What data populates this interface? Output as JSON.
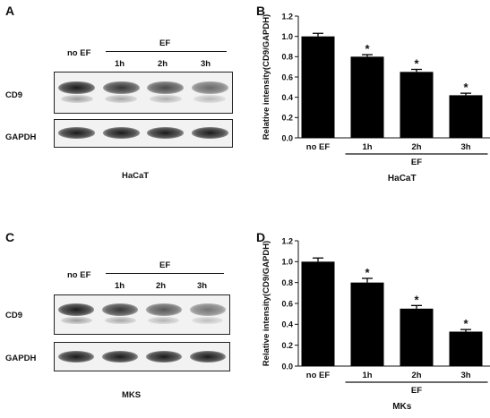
{
  "panels": {
    "a": {
      "letter": "A",
      "no_ef": "no EF",
      "ef": "EF",
      "times": [
        "1h",
        "2h",
        "3h"
      ],
      "rows": [
        "CD9",
        "GAPDH"
      ],
      "cell": "HaCaT",
      "cd9_intensity": [
        1.0,
        0.8,
        0.65,
        0.42
      ],
      "gapdh_intensity": [
        1.0,
        1.0,
        1.0,
        1.0
      ]
    },
    "b": {
      "letter": "B"
    },
    "c": {
      "letter": "C",
      "no_ef": "no EF",
      "ef": "EF",
      "times": [
        "1h",
        "2h",
        "3h"
      ],
      "rows": [
        "CD9",
        "GAPDH"
      ],
      "cell": "MKS",
      "cd9_intensity": [
        1.0,
        0.8,
        0.55,
        0.33
      ],
      "gapdh_intensity": [
        1.0,
        1.0,
        1.0,
        1.0
      ]
    },
    "d": {
      "letter": "D"
    }
  },
  "chart_data": [
    {
      "type": "bar",
      "categories": [
        "no EF",
        "1h",
        "2h",
        "3h"
      ],
      "values": [
        1.0,
        0.8,
        0.65,
        0.42
      ],
      "errors": [
        0.03,
        0.02,
        0.025,
        0.02
      ],
      "significance": [
        "",
        "*",
        "*",
        "*"
      ],
      "group_label": "EF",
      "xlabel": "HaCaT",
      "ylabel": "Relative intensity(CD9/GAPDH)",
      "ylim": [
        0,
        1.2
      ],
      "yticks": [
        "0.0",
        "0.2",
        "0.4",
        "0.6",
        "0.8",
        "1.0",
        "1.2"
      ]
    },
    {
      "type": "bar",
      "categories": [
        "no EF",
        "1h",
        "2h",
        "3h"
      ],
      "values": [
        1.0,
        0.8,
        0.55,
        0.33
      ],
      "errors": [
        0.035,
        0.04,
        0.03,
        0.02
      ],
      "significance": [
        "",
        "*",
        "*",
        "*"
      ],
      "group_label": "EF",
      "xlabel": "MKs",
      "ylabel": "Relative intensity(CD9/GAPDH)",
      "ylim": [
        0,
        1.2
      ],
      "yticks": [
        "0.0",
        "0.2",
        "0.4",
        "0.6",
        "0.8",
        "1.0",
        "1.2"
      ]
    }
  ]
}
